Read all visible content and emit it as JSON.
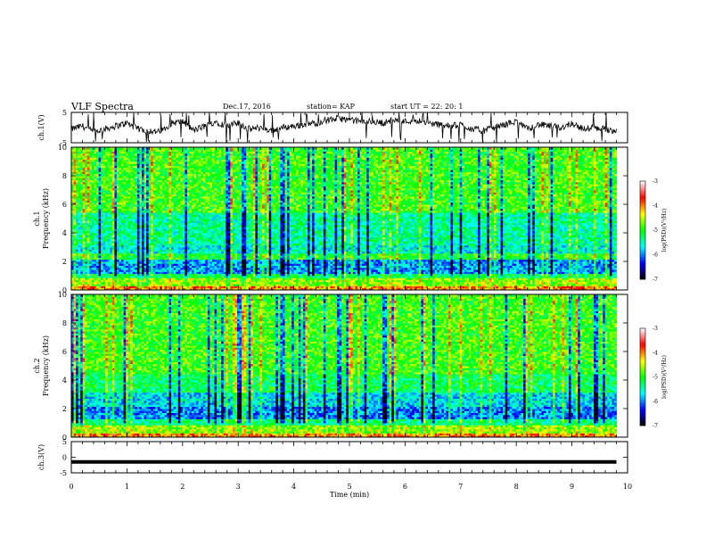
{
  "header": {
    "title": "VLF Spectra",
    "date": "Dec.17, 2016",
    "station": "station= KAP",
    "start_ut": "start  UT =   22: 20: 1"
  },
  "chart_data": [
    {
      "type": "line",
      "id": "ch1-waveform",
      "ylabel": "ch.1(V)",
      "ylim": [
        -5,
        5
      ],
      "yticks": [
        "5",
        "-5"
      ],
      "xlim": [
        0,
        10
      ],
      "series": [
        {
          "color": "#000000",
          "x": [
            0,
            0.2,
            0.4,
            0.6,
            0.8,
            1.0,
            1.2,
            1.4,
            1.6,
            1.8,
            2.0,
            2.2,
            2.4,
            2.6,
            2.8,
            3.0,
            3.2,
            3.4,
            3.6,
            3.8,
            4.0,
            4.2,
            4.4,
            4.6,
            4.8,
            5.0,
            5.2,
            5.4,
            5.6,
            5.8,
            6.0,
            6.2,
            6.4,
            6.6,
            6.8,
            7.0,
            7.2,
            7.4,
            7.6,
            7.8,
            8.0,
            8.2,
            8.4,
            8.6,
            8.8,
            9.0,
            9.2,
            9.4,
            9.6,
            9.8
          ],
          "values": [
            -0.5,
            0.5,
            -1.5,
            -0.5,
            0.5,
            1.5,
            -0.5,
            -1,
            -1.5,
            1.5,
            2,
            -1,
            0.5,
            2,
            0.5,
            1.5,
            -0.5,
            0,
            -1,
            0,
            0.5,
            1,
            1.5,
            2.5,
            3,
            2.5,
            2,
            2,
            1.5,
            2.5,
            2,
            2.5,
            1.5,
            1,
            0.5,
            1,
            -0.5,
            -1,
            0,
            1,
            2,
            -0.5,
            1,
            0.5,
            0,
            1.5,
            -0.5,
            0,
            -0.5,
            -1
          ]
        }
      ]
    },
    {
      "type": "heatmap",
      "id": "ch1-spectrogram",
      "ylabel": "ch.1\nFrequency (kHz)",
      "ylim": [
        0,
        10
      ],
      "yticks": [
        "0",
        "2",
        "4",
        "6",
        "8",
        "10"
      ],
      "xlim": [
        0,
        10
      ],
      "colorbar": {
        "label": "log(PSD)(V²/Hz)",
        "range": [
          -7,
          -3
        ],
        "ticks": [
          "-7",
          "-6",
          "-5",
          "-4",
          "-3"
        ],
        "colors": [
          "#000000",
          "#0000ff",
          "#00ffff",
          "#00ff00",
          "#ffff00",
          "#ff0000",
          "#ffffff"
        ]
      },
      "bands": [
        {
          "f_low": 0.0,
          "f_high": 0.35,
          "level": -4.0
        },
        {
          "f_low": 0.35,
          "f_high": 0.9,
          "level": -4.6
        },
        {
          "f_low": 0.9,
          "f_high": 1.2,
          "level": -5.2
        },
        {
          "f_low": 1.2,
          "f_high": 2.2,
          "level": -5.9
        },
        {
          "f_low": 2.2,
          "f_high": 2.6,
          "level": -5.0
        },
        {
          "f_low": 2.6,
          "f_high": 3.2,
          "level": -5.6
        },
        {
          "f_low": 3.2,
          "f_high": 5.5,
          "level": -5.4
        },
        {
          "f_low": 5.5,
          "f_high": 10.0,
          "level": -4.9
        }
      ]
    },
    {
      "type": "heatmap",
      "id": "ch2-spectrogram",
      "ylabel": "ch.2\nFrequency (kHz)",
      "ylim": [
        0,
        10
      ],
      "yticks": [
        "0",
        "2",
        "4",
        "6",
        "8",
        "10"
      ],
      "xlim": [
        0,
        10
      ],
      "colorbar": {
        "label": "log(PSD)(V²/Hz)",
        "range": [
          -7,
          -3
        ],
        "ticks": [
          "-7",
          "-6",
          "-5",
          "-4",
          "-3"
        ],
        "colors": [
          "#000000",
          "#0000ff",
          "#00ffff",
          "#00ff00",
          "#ffff00",
          "#ff0000",
          "#ffffff"
        ]
      },
      "bands": [
        {
          "f_low": 0.0,
          "f_high": 0.35,
          "level": -4.0
        },
        {
          "f_low": 0.35,
          "f_high": 0.9,
          "level": -4.6
        },
        {
          "f_low": 0.9,
          "f_high": 1.3,
          "level": -5.3
        },
        {
          "f_low": 1.3,
          "f_high": 2.2,
          "level": -6.0
        },
        {
          "f_low": 2.2,
          "f_high": 3.2,
          "level": -5.7
        },
        {
          "f_low": 3.2,
          "f_high": 4.4,
          "level": -5.2
        },
        {
          "f_low": 4.4,
          "f_high": 10.0,
          "level": -4.9
        }
      ]
    },
    {
      "type": "line",
      "id": "ch3-waveform",
      "ylabel": "ch.3(V)",
      "ylim": [
        -5,
        5
      ],
      "yticks": [
        "5",
        "0",
        "-5"
      ],
      "xlim": [
        0,
        10
      ],
      "xlabel": "Time (min)",
      "xticks": [
        "0",
        "1",
        "2",
        "3",
        "4",
        "5",
        "6",
        "7",
        "8",
        "9",
        "10"
      ],
      "series": [
        {
          "color": "#000000",
          "x": [
            0,
            9.8
          ],
          "values": [
            -1.5,
            -1.5
          ]
        }
      ]
    }
  ]
}
